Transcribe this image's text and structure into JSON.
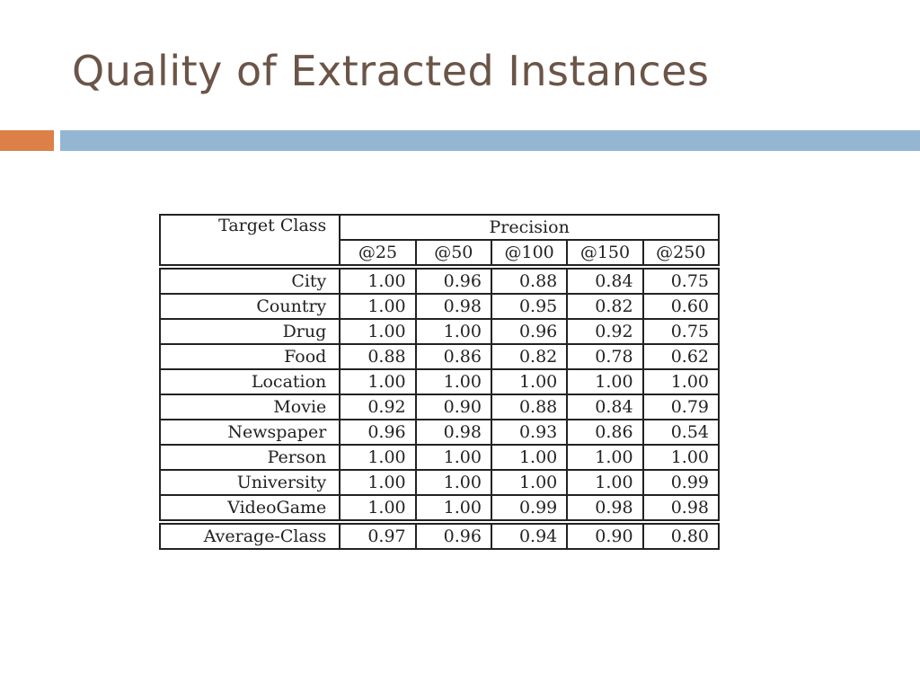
{
  "slide": {
    "title": "Quality of Extracted Instances",
    "accent_colors": {
      "title": "#6b5548",
      "orange_bar": "#dd8047",
      "blue_bar": "#94b6d2"
    }
  },
  "table": {
    "header": {
      "target_class": "Target Class",
      "precision": "Precision",
      "columns": [
        "@25",
        "@50",
        "@100",
        "@150",
        "@250"
      ]
    },
    "rows": [
      {
        "class": "City",
        "values": [
          "1.00",
          "0.96",
          "0.88",
          "0.84",
          "0.75"
        ]
      },
      {
        "class": "Country",
        "values": [
          "1.00",
          "0.98",
          "0.95",
          "0.82",
          "0.60"
        ]
      },
      {
        "class": "Drug",
        "values": [
          "1.00",
          "1.00",
          "0.96",
          "0.92",
          "0.75"
        ]
      },
      {
        "class": "Food",
        "values": [
          "0.88",
          "0.86",
          "0.82",
          "0.78",
          "0.62"
        ]
      },
      {
        "class": "Location",
        "values": [
          "1.00",
          "1.00",
          "1.00",
          "1.00",
          "1.00"
        ]
      },
      {
        "class": "Movie",
        "values": [
          "0.92",
          "0.90",
          "0.88",
          "0.84",
          "0.79"
        ]
      },
      {
        "class": "Newspaper",
        "values": [
          "0.96",
          "0.98",
          "0.93",
          "0.86",
          "0.54"
        ]
      },
      {
        "class": "Person",
        "values": [
          "1.00",
          "1.00",
          "1.00",
          "1.00",
          "1.00"
        ]
      },
      {
        "class": "University",
        "values": [
          "1.00",
          "1.00",
          "1.00",
          "1.00",
          "0.99"
        ]
      },
      {
        "class": "VideoGame",
        "values": [
          "1.00",
          "1.00",
          "0.99",
          "0.98",
          "0.98"
        ]
      }
    ],
    "average": {
      "class": "Average-Class",
      "values": [
        "0.97",
        "0.96",
        "0.94",
        "0.90",
        "0.80"
      ]
    }
  }
}
